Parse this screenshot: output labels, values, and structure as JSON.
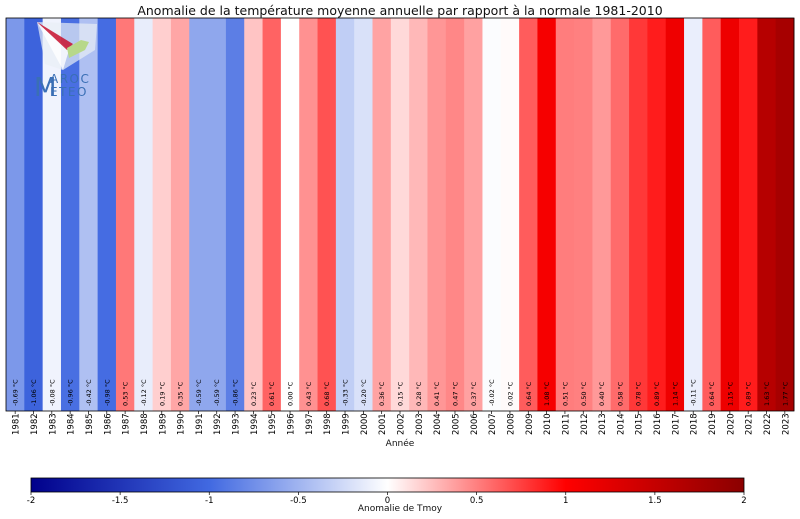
{
  "chart_data": {
    "type": "bar",
    "title": "Anomalie de la température moyenne annuelle par rapport à la normale 1981-2010",
    "xlabel": "Année",
    "unit_suffix": " °C",
    "categories": [
      "1981",
      "1982",
      "1983",
      "1984",
      "1985",
      "1986",
      "1987",
      "1988",
      "1989",
      "1990",
      "1991",
      "1992",
      "1993",
      "1994",
      "1995",
      "1996",
      "1997",
      "1998",
      "1999",
      "2000",
      "2001",
      "2002",
      "2003",
      "2004",
      "2005",
      "2006",
      "2007",
      "2008",
      "2009",
      "2010",
      "2011",
      "2012",
      "2013",
      "2014",
      "2015",
      "2016",
      "2017",
      "2018",
      "2019",
      "2020",
      "2021",
      "2022",
      "2023"
    ],
    "values": [
      -0.69,
      -1.06,
      -0.08,
      -0.96,
      -0.42,
      -0.98,
      0.53,
      -0.12,
      0.19,
      0.35,
      -0.59,
      -0.59,
      -0.86,
      0.23,
      0.61,
      0.0,
      0.43,
      0.68,
      -0.33,
      -0.2,
      0.36,
      0.15,
      0.28,
      0.41,
      0.47,
      0.37,
      -0.02,
      0.02,
      0.64,
      1.08,
      0.51,
      0.5,
      0.4,
      0.58,
      0.78,
      0.89,
      1.14,
      -0.11,
      0.64,
      1.15,
      0.89,
      1.63,
      1.77
    ],
    "value_labels": [
      "-0.69 °C",
      "-1.06 °C",
      "-0.08 °C",
      "-0.96 °C",
      "-0.42 °C",
      "-0.98 °C",
      "0.53 °C",
      "-0.12 °C",
      "0.19 °C",
      "0.35 °C",
      "-0.59 °C",
      "-0.59 °C",
      "-0.86 °C",
      "0.23 °C",
      "0.61 °C",
      "0.00 °C",
      "0.43 °C",
      "0.68 °C",
      "-0.33 °C",
      "-0.20 °C",
      "0.36 °C",
      "0.15 °C",
      "0.28 °C",
      "0.41 °C",
      "0.47 °C",
      "0.37 °C",
      "-0.02 °C",
      "0.02 °C",
      "0.64 °C",
      "1.08 °C",
      "0.51 °C",
      "0.50 °C",
      "0.40 °C",
      "0.58 °C",
      "0.78 °C",
      "0.89 °C",
      "1.14 °C",
      "-0.11 °C",
      "0.64 °C",
      "1.15 °C",
      "0.89 °C",
      "1.63 °C",
      "1.77 °C"
    ],
    "colorbar": {
      "label": "Anomalie de Tmoy",
      "vmin": -2,
      "vmax": 2,
      "ticks": [
        -2,
        -1.5,
        -1,
        -0.5,
        0,
        0.5,
        1,
        1.5,
        2
      ],
      "tick_labels": [
        "-2",
        "-1.5",
        "-1",
        "-0.5",
        "0",
        "0.5",
        "1",
        "1.5",
        "2"
      ],
      "colormap": [
        "#00008b",
        "#4169e1",
        "#ffffff",
        "#ff0000",
        "#8b0000"
      ]
    }
  },
  "logo": {
    "text_line1": "AROC",
    "text_line2": "ETEO",
    "big_letter": "M",
    "colors": {
      "text": "#3a6fb5",
      "star": "#c8102e",
      "land": "#b7d88a"
    }
  }
}
